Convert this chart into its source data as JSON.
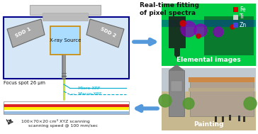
{
  "bg_color": "#ffffff",
  "title_text": "Real-time fitting\nof pixel spectra",
  "elemental_label": "Elemental images",
  "painting_label": "Painting",
  "focus_text": "Focus spot 26 μm",
  "micro_xrf_text": "—  Micro-XRF",
  "macro_xrf_text": "—  Macro-XRF",
  "scan_text": "100×70×20 cm³ XYZ scanning\n     scanning speed @ 100 mm/sec",
  "sdd1_text": "SDD 1",
  "sdd2_text": "SDD 2",
  "xray_text": "X-ray Source",
  "box_bg": "#d6e8f7",
  "box_border": "#00008b",
  "sdd_color": "#aaaaaa",
  "xray_box_color": "#aaddff",
  "xray_box_border": "#cc8800",
  "collimator_color": "#888888",
  "stripe_colors": [
    "#dd2222",
    "#ffee00",
    "#2255cc",
    "#88aacc"
  ],
  "arrow_color": "#5599dd",
  "elemental_bg": "#00dd44",
  "fe_color": "#ff0000",
  "ti_color": "#00aaff",
  "zn_color": "#0000cc"
}
